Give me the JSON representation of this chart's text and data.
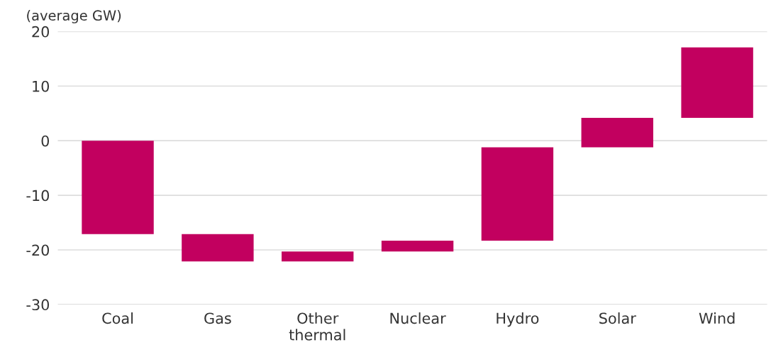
{
  "chart_data": {
    "type": "bar",
    "ylabel": "(average GW)",
    "categories": [
      "Coal",
      "Gas",
      "Other\nthermal",
      "Nuclear",
      "Hydro",
      "Solar",
      "Wind"
    ],
    "base": [
      0,
      -17.1,
      -22.1,
      -20.3,
      -18.3,
      -1.2,
      4.2
    ],
    "values": [
      -17.1,
      -5.0,
      1.8,
      2.0,
      17.1,
      5.4,
      12.9
    ],
    "color": "#c2005f",
    "ylim": [
      -30,
      20
    ],
    "yticks": [
      -30,
      -20,
      -10,
      0,
      10,
      20
    ],
    "grid": "y",
    "legend": false
  }
}
